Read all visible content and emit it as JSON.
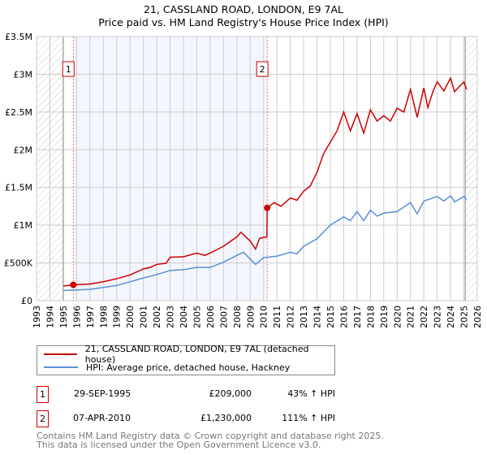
{
  "title": "21, CASSLAND ROAD, LONDON, E9 7AL",
  "subtitle": "Price paid vs. HM Land Registry's House Price Index (HPI)",
  "chart_data": {
    "type": "line",
    "title": "21, CASSLAND ROAD, LONDON, E9 7AL — Price paid vs. HM Land Registry's House Price Index (HPI)",
    "xlim": [
      1993,
      2026
    ],
    "ylim": [
      0,
      3500000
    ],
    "x_ticks": [
      "1993",
      "1994",
      "1995",
      "1996",
      "1997",
      "1998",
      "1999",
      "2000",
      "2001",
      "2002",
      "2003",
      "2004",
      "2005",
      "2006",
      "2007",
      "2008",
      "2009",
      "2010",
      "2011",
      "2012",
      "2013",
      "2014",
      "2015",
      "2016",
      "2017",
      "2018",
      "2019",
      "2020",
      "2021",
      "2022",
      "2023",
      "2024",
      "2025",
      "2026"
    ],
    "y_ticks": [
      {
        "v": 0,
        "label": "£0"
      },
      {
        "v": 500000,
        "label": "£500K"
      },
      {
        "v": 1000000,
        "label": "£1M"
      },
      {
        "v": 1500000,
        "label": "£1.5M"
      },
      {
        "v": 2000000,
        "label": "£2M"
      },
      {
        "v": 2500000,
        "label": "£2.5M"
      },
      {
        "v": 3000000,
        "label": "£3M"
      },
      {
        "v": 3500000,
        "label": "£3.5M"
      }
    ],
    "grid": true,
    "hatched_ranges": [
      [
        1993,
        1995
      ],
      [
        2025.1,
        2026
      ]
    ],
    "shaded_range": [
      1995.75,
      2010.27
    ],
    "series": [
      {
        "name": "21, CASSLAND ROAD, LONDON, E9 7AL (detached house)",
        "color": "#cc0000",
        "x": [
          1995,
          1995.75,
          1997,
          1998,
          1999,
          2000,
          2001,
          2001.5,
          2002,
          2002.7,
          2003,
          2004,
          2005,
          2005.6,
          2006,
          2007,
          2008,
          2008.3,
          2009,
          2009.4,
          2009.7,
          2010.25,
          2010.27,
          2010.8,
          2011.3,
          2012,
          2012.5,
          2013,
          2013.5,
          2014,
          2014.5,
          2015,
          2015.5,
          2016,
          2016.5,
          2017,
          2017.5,
          2018,
          2018.5,
          2019,
          2019.5,
          2020,
          2020.5,
          2021,
          2021.5,
          2022,
          2022.3,
          2022.7,
          2023,
          2023.5,
          2024,
          2024.3,
          2025,
          2025.2
        ],
        "y": [
          195000,
          209000,
          220000,
          250000,
          290000,
          340000,
          420000,
          440000,
          480000,
          495000,
          575000,
          582000,
          630000,
          600000,
          630000,
          720000,
          845000,
          905000,
          790000,
          683000,
          826000,
          845000,
          1230000,
          1300000,
          1250000,
          1360000,
          1330000,
          1450000,
          1520000,
          1700000,
          1950000,
          2100000,
          2250000,
          2500000,
          2250000,
          2480000,
          2220000,
          2530000,
          2380000,
          2450000,
          2380000,
          2550000,
          2500000,
          2800000,
          2430000,
          2820000,
          2560000,
          2780000,
          2900000,
          2780000,
          2950000,
          2770000,
          2900000,
          2800000
        ]
      },
      {
        "name": "HPI: Average price, detached house, Hackney",
        "color": "#5b8fd4",
        "x": [
          1995,
          1997,
          1998,
          1999,
          2000,
          2001,
          2002,
          2003,
          2004,
          2005,
          2006,
          2007,
          2008,
          2008.5,
          2009.4,
          2010,
          2011,
          2012,
          2012.5,
          2013,
          2014,
          2015,
          2016,
          2016.5,
          2017,
          2017.5,
          2018,
          2018.5,
          2019,
          2020,
          2021,
          2021.5,
          2022,
          2023,
          2023.5,
          2024,
          2024.3,
          2025,
          2025.2
        ],
        "y": [
          135000,
          150000,
          175000,
          200000,
          250000,
          300000,
          345000,
          400000,
          410000,
          440000,
          440000,
          510000,
          600000,
          640000,
          480000,
          570000,
          590000,
          640000,
          620000,
          720000,
          820000,
          1000000,
          1110000,
          1060000,
          1180000,
          1060000,
          1200000,
          1120000,
          1160000,
          1180000,
          1300000,
          1150000,
          1320000,
          1380000,
          1320000,
          1390000,
          1310000,
          1380000,
          1340000
        ]
      }
    ],
    "annotations": [
      {
        "label": "1",
        "x": 1995.75,
        "y": 209000
      },
      {
        "label": "2",
        "x": 2010.27,
        "y": 1230000
      }
    ]
  },
  "legend": [
    {
      "label": "21, CASSLAND ROAD, LONDON, E9 7AL (detached house)",
      "color": "#cc0000"
    },
    {
      "label": "HPI: Average price, detached house, Hackney",
      "color": "#5b8fd4"
    }
  ],
  "transactions": [
    {
      "num": "1",
      "date": "29-SEP-1995",
      "price": "£209,000",
      "hpi": "43% ↑ HPI"
    },
    {
      "num": "2",
      "date": "07-APR-2010",
      "price": "£1,230,000",
      "hpi": "111% ↑ HPI"
    }
  ],
  "footer": [
    "Contains HM Land Registry data © Crown copyright and database right 2025.",
    "This data is licensed under the Open Government Licence v3.0."
  ]
}
